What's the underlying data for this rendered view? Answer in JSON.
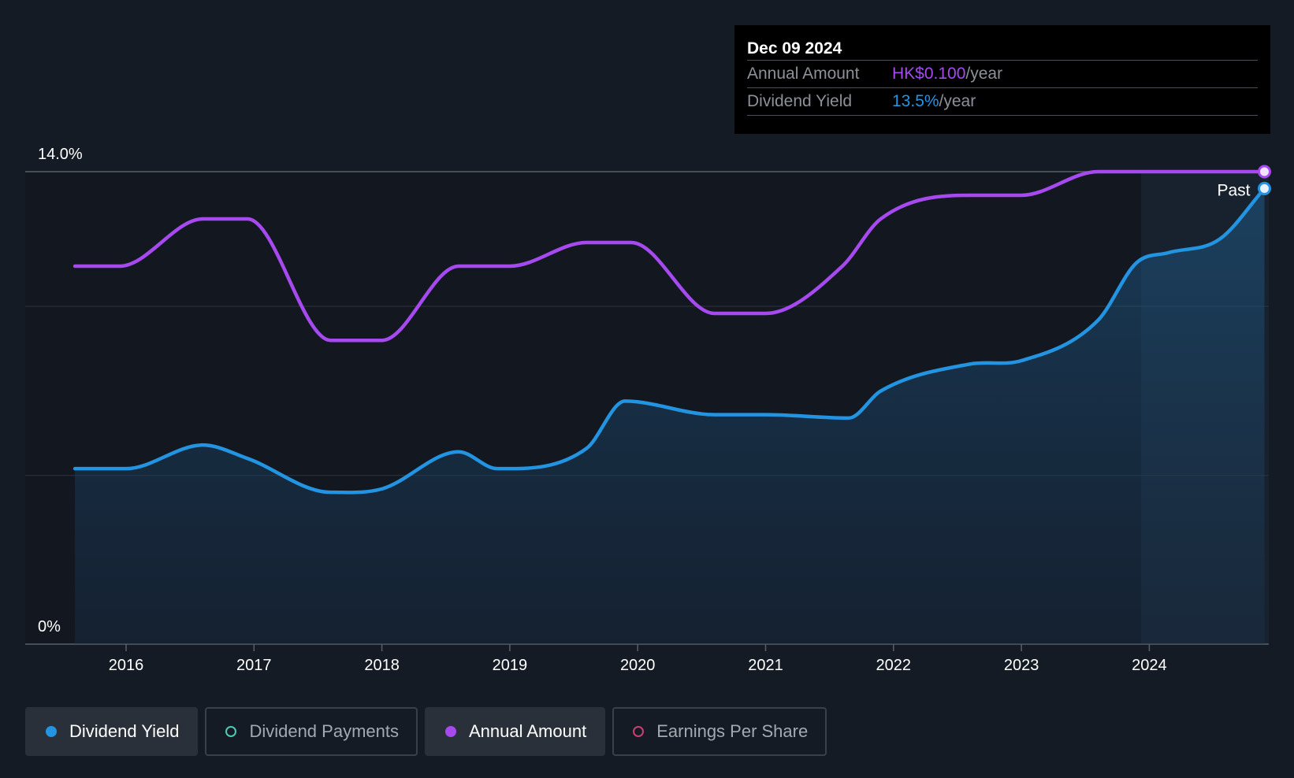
{
  "chart_data": {
    "type": "line",
    "x_ticks": [
      "2016",
      "2017",
      "2018",
      "2019",
      "2020",
      "2021",
      "2022",
      "2023",
      "2024"
    ],
    "y_ticks": [
      "0%",
      "14.0%"
    ],
    "ylim": [
      0,
      14
    ],
    "past_label": "Past",
    "series": [
      {
        "name": "Dividend Yield",
        "color": "#2394e2",
        "filled": true,
        "points": [
          [
            2015.6,
            5.2
          ],
          [
            2016.0,
            5.2
          ],
          [
            2016.6,
            5.9
          ],
          [
            2016.95,
            5.5
          ],
          [
            2017.6,
            4.5
          ],
          [
            2018.0,
            4.6
          ],
          [
            2018.6,
            5.7
          ],
          [
            2018.9,
            5.2
          ],
          [
            2019.6,
            5.8
          ],
          [
            2019.9,
            7.2
          ],
          [
            2020.6,
            6.8
          ],
          [
            2021.0,
            6.8
          ],
          [
            2021.65,
            6.7
          ],
          [
            2021.9,
            7.5
          ],
          [
            2022.6,
            8.3
          ],
          [
            2023.0,
            8.4
          ],
          [
            2023.6,
            9.6
          ],
          [
            2023.9,
            11.3
          ],
          [
            2024.15,
            11.6
          ],
          [
            2024.55,
            12.0
          ],
          [
            2024.9,
            13.5
          ]
        ]
      },
      {
        "name": "Annual Amount",
        "color": "#a64af0",
        "filled": false,
        "points": [
          [
            2015.6,
            11.2
          ],
          [
            2015.95,
            11.2
          ],
          [
            2016.6,
            12.6
          ],
          [
            2016.95,
            12.6
          ],
          [
            2017.6,
            9.0
          ],
          [
            2018.0,
            9.0
          ],
          [
            2018.6,
            11.2
          ],
          [
            2019.0,
            11.2
          ],
          [
            2019.6,
            11.9
          ],
          [
            2019.95,
            11.9
          ],
          [
            2020.6,
            9.8
          ],
          [
            2021.0,
            9.8
          ],
          [
            2021.6,
            11.2
          ],
          [
            2021.9,
            12.6
          ],
          [
            2022.6,
            13.3
          ],
          [
            2023.0,
            13.3
          ],
          [
            2023.6,
            14.0
          ],
          [
            2024.9,
            14.0
          ]
        ]
      }
    ]
  },
  "tooltip": {
    "date": "Dec 09 2024",
    "rows": [
      {
        "label": "Annual Amount",
        "value": "HK$0.100",
        "unit": "/year",
        "color": "#a64af0"
      },
      {
        "label": "Dividend Yield",
        "value": "13.5%",
        "unit": "/year",
        "color": "#2394e2"
      }
    ]
  },
  "legend": [
    {
      "label": "Dividend Yield",
      "active": true,
      "color": "#2394e2",
      "hollow": false
    },
    {
      "label": "Dividend Payments",
      "active": false,
      "color": "#4fc8b8",
      "hollow": true
    },
    {
      "label": "Annual Amount",
      "active": true,
      "color": "#a64af0",
      "hollow": false
    },
    {
      "label": "Earnings Per Share",
      "active": false,
      "color": "#c9406e",
      "hollow": true
    }
  ]
}
